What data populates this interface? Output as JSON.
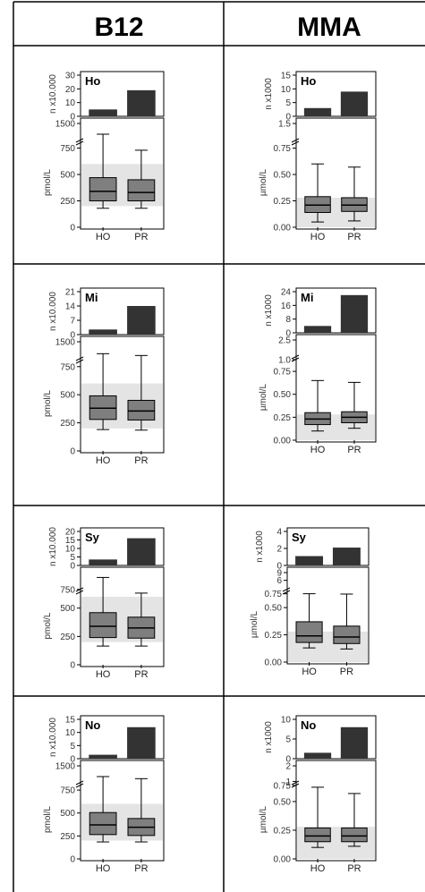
{
  "headers": {
    "b12": "B12",
    "mma": "MMA"
  },
  "categories": [
    "HO",
    "PR"
  ],
  "chart_data": [
    {
      "id": "ho-b12",
      "type": "box+bar",
      "column": "B12",
      "region": "Ho",
      "bar_ylabel": "n x10.000",
      "bar_ticks": [
        "0",
        "10",
        "20",
        "30"
      ],
      "bar_max": 30,
      "bar_values": [
        5,
        19
      ],
      "box_ylabel": "pmol/L",
      "box_ticks": [
        "0",
        "250",
        "500",
        "750",
        "1500"
      ],
      "box_break": 1000,
      "box_upper": 1500,
      "ref_range": [
        200,
        600
      ],
      "boxes": [
        {
          "min": 180,
          "q1": 250,
          "median": 340,
          "q3": 470,
          "max": 1140
        },
        {
          "min": 180,
          "q1": 250,
          "median": 330,
          "q3": 450,
          "max": 730
        }
      ]
    },
    {
      "id": "ho-mma",
      "type": "box+bar",
      "column": "MMA",
      "region": "Ho",
      "bar_ylabel": "n x1000",
      "bar_ticks": [
        "0",
        "5",
        "10",
        "15"
      ],
      "bar_max": 15,
      "bar_values": [
        3,
        9
      ],
      "box_ylabel": "µmol/L",
      "box_ticks": [
        "0.00",
        "0.25",
        "0.50",
        "0.75",
        "1.5"
      ],
      "box_break": 1.0,
      "box_upper": 1.5,
      "ref_range": [
        0,
        0.28
      ],
      "boxes": [
        {
          "min": 0.05,
          "q1": 0.14,
          "median": 0.21,
          "q3": 0.29,
          "max": 0.6
        },
        {
          "min": 0.06,
          "q1": 0.15,
          "median": 0.21,
          "q3": 0.28,
          "max": 0.57
        }
      ]
    },
    {
      "id": "mi-b12",
      "type": "box+bar",
      "column": "B12",
      "region": "Mi",
      "bar_ylabel": "n x10.000",
      "bar_ticks": [
        "0",
        "7",
        "14",
        "21"
      ],
      "bar_max": 21,
      "bar_values": [
        2.5,
        14
      ],
      "box_ylabel": "pmol/L",
      "box_ticks": [
        "0",
        "250",
        "500",
        "750",
        "1500"
      ],
      "box_break": 1000,
      "box_upper": 1500,
      "ref_range": [
        200,
        600
      ],
      "boxes": [
        {
          "min": 190,
          "q1": 280,
          "median": 380,
          "q3": 490,
          "max": 1100
        },
        {
          "min": 185,
          "q1": 275,
          "median": 355,
          "q3": 450,
          "max": 1040
        }
      ]
    },
    {
      "id": "mi-mma",
      "type": "box+bar",
      "column": "MMA",
      "region": "Mi",
      "bar_ylabel": "n x1000",
      "bar_ticks": [
        "0",
        "8",
        "16",
        "24"
      ],
      "bar_max": 24,
      "bar_values": [
        4,
        22
      ],
      "box_ylabel": "µmol/L",
      "box_ticks": [
        "0.00",
        "0.25",
        "0.50",
        "0.75",
        "1.0",
        "2.5"
      ],
      "box_break": 1.1,
      "box_upper": 2.5,
      "ref_range": [
        0,
        0.28
      ],
      "boxes": [
        {
          "min": 0.1,
          "q1": 0.17,
          "median": 0.23,
          "q3": 0.3,
          "max": 0.65
        },
        {
          "min": 0.13,
          "q1": 0.19,
          "median": 0.25,
          "q3": 0.31,
          "max": 0.63
        }
      ]
    },
    {
      "id": "sy-b12",
      "type": "box+bar",
      "column": "B12",
      "region": "Sy",
      "bar_ylabel": "n x10.000",
      "bar_ticks": [
        "0",
        "5",
        "10",
        "15",
        "20"
      ],
      "bar_max": 20,
      "bar_values": [
        3.5,
        16
      ],
      "box_ylabel": "pmol/L",
      "box_ticks": [
        "0",
        "250",
        "500",
        "750"
      ],
      "box_break": 800,
      "box_upper": 1200,
      "ref_range": [
        200,
        600
      ],
      "boxes": [
        {
          "min": 165,
          "q1": 240,
          "median": 340,
          "q3": 460,
          "max": 1070
        },
        {
          "min": 165,
          "q1": 235,
          "median": 325,
          "q3": 420,
          "max": 650
        }
      ]
    },
    {
      "id": "sy-mma",
      "type": "box+bar",
      "column": "MMA",
      "region": "Sy",
      "bar_ylabel": "n x1000",
      "bar_ticks": [
        "0",
        "2",
        "4"
      ],
      "bar_max": 4,
      "bar_values": [
        1.1,
        2.1
      ],
      "box_ylabel": "µmol/L",
      "box_ticks": [
        "0.00",
        "0.25",
        "0.50",
        "0.75",
        "6",
        "9"
      ],
      "box_break": 0.8,
      "box_upper": 9,
      "ref_range": [
        0,
        0.28
      ],
      "boxes": [
        {
          "min": 0.13,
          "q1": 0.18,
          "median": 0.24,
          "q3": 0.37,
          "max": 0.76
        },
        {
          "min": 0.12,
          "q1": 0.17,
          "median": 0.23,
          "q3": 0.33,
          "max": 0.63
        }
      ]
    },
    {
      "id": "no-b12",
      "type": "box+bar",
      "column": "B12",
      "region": "No",
      "bar_ylabel": "n x10.000",
      "bar_ticks": [
        "0",
        "5",
        "10",
        "15"
      ],
      "bar_max": 15,
      "bar_values": [
        1.5,
        12
      ],
      "box_ylabel": "pmol/L",
      "box_ticks": [
        "0",
        "250",
        "500",
        "750",
        "1500"
      ],
      "box_break": 1000,
      "box_upper": 1500,
      "ref_range": [
        200,
        600
      ],
      "boxes": [
        {
          "min": 185,
          "q1": 265,
          "median": 370,
          "q3": 505,
          "max": 1140
        },
        {
          "min": 185,
          "q1": 255,
          "median": 345,
          "q3": 440,
          "max": 1070
        }
      ]
    },
    {
      "id": "no-mma",
      "type": "box+bar",
      "column": "MMA",
      "region": "No",
      "bar_ylabel": "n x1000",
      "bar_ticks": [
        "0",
        "5",
        "10"
      ],
      "bar_max": 10,
      "bar_values": [
        1.5,
        8
      ],
      "box_ylabel": "µmol/L",
      "box_ticks": [
        "0.00",
        "0.25",
        "0.50",
        "0.75",
        "1",
        "2"
      ],
      "box_break": 0.8,
      "box_upper": 2,
      "ref_range": [
        0,
        0.28
      ],
      "boxes": [
        {
          "min": 0.1,
          "q1": 0.15,
          "median": 0.2,
          "q3": 0.27,
          "max": 0.63
        },
        {
          "min": 0.11,
          "q1": 0.15,
          "median": 0.2,
          "q3": 0.27,
          "max": 0.57
        }
      ]
    }
  ],
  "colors": {
    "bar": "#333333",
    "box": "#7f7f7f",
    "ref": "#d9d9d9",
    "line": "#000000"
  }
}
